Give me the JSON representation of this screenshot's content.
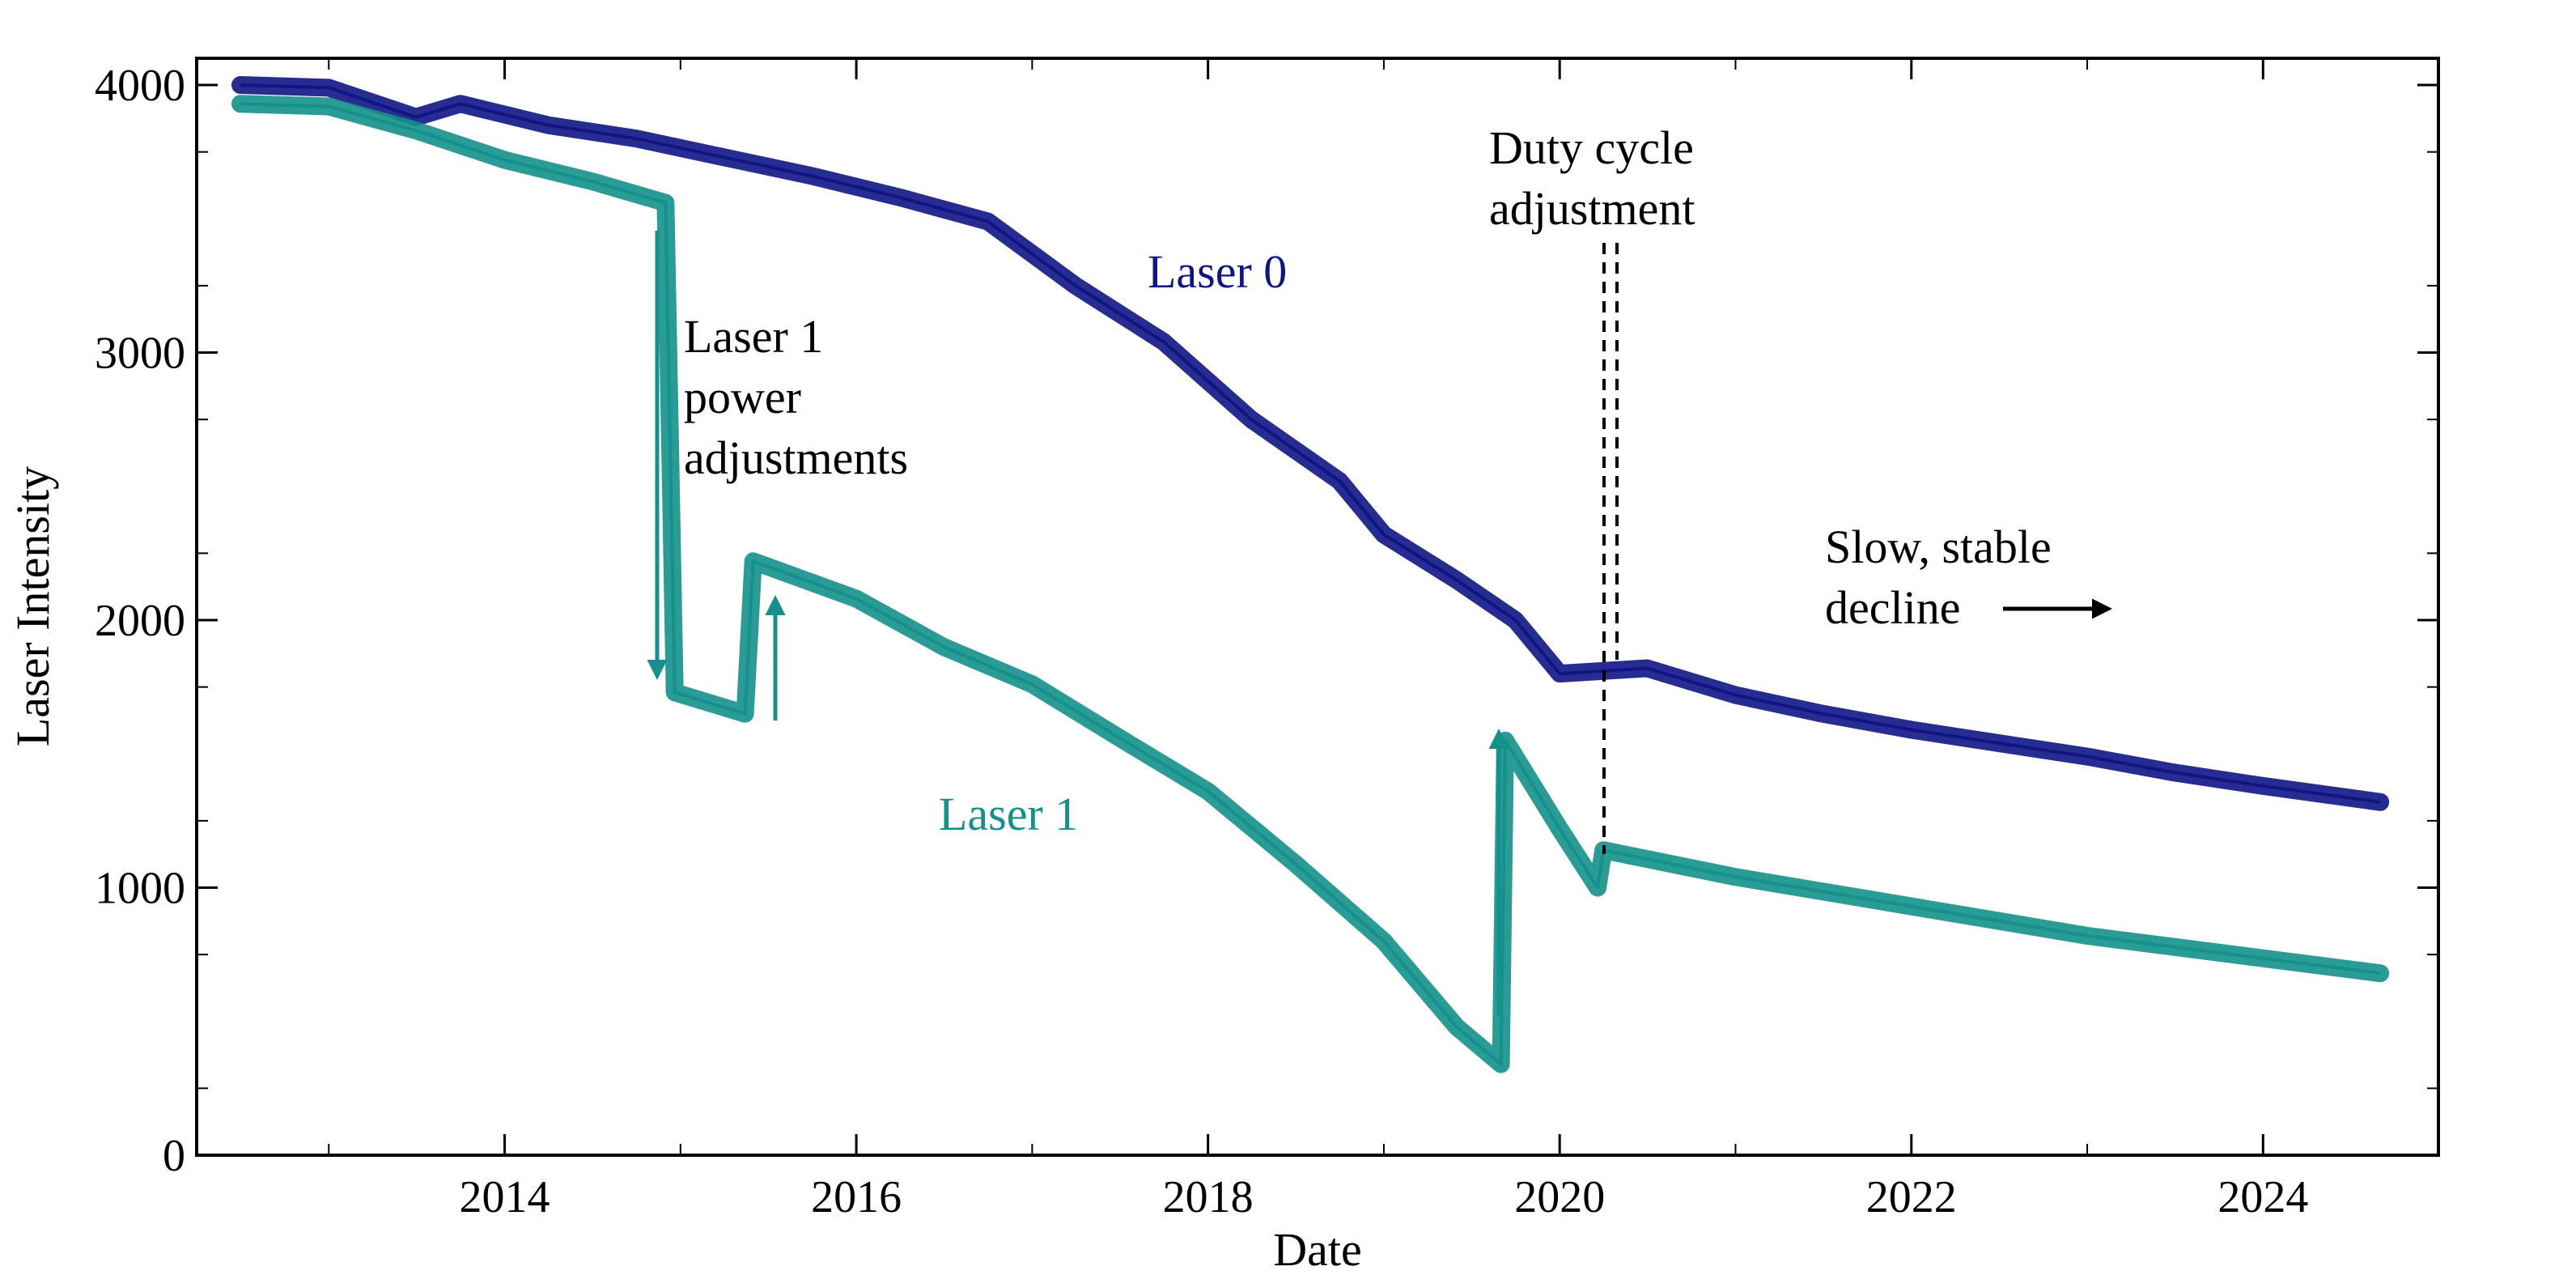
{
  "chart_data": {
    "type": "line",
    "title": "",
    "xlabel": "Date",
    "ylabel": "Laser Intensity",
    "xlim": [
      "2012-04-01",
      "2024-12-31"
    ],
    "ylim": [
      0,
      4100
    ],
    "x_ticks": [
      "2014",
      "2016",
      "2018",
      "2020",
      "2022",
      "2024"
    ],
    "y_ticks": [
      "0",
      "1000",
      "2000",
      "3000",
      "4000"
    ],
    "grid": false,
    "colors": {
      "laser0": "#101585",
      "laser1": "#13918a",
      "annotation": "#000000"
    },
    "series": [
      {
        "name": "Laser 0",
        "color": "#101585",
        "points": [
          [
            "2012-07-01",
            4000
          ],
          [
            "2013-01-01",
            3990
          ],
          [
            "2013-07-01",
            3880
          ],
          [
            "2013-10-01",
            3930
          ],
          [
            "2014-04-01",
            3850
          ],
          [
            "2014-10-01",
            3800
          ],
          [
            "2015-04-01",
            3730
          ],
          [
            "2015-10-01",
            3660
          ],
          [
            "2016-04-01",
            3580
          ],
          [
            "2016-10-01",
            3490
          ],
          [
            "2017-04-01",
            3250
          ],
          [
            "2017-10-01",
            3040
          ],
          [
            "2018-04-01",
            2750
          ],
          [
            "2018-10-01",
            2520
          ],
          [
            "2019-01-01",
            2320
          ],
          [
            "2019-06-01",
            2150
          ],
          [
            "2019-10-01",
            2000
          ],
          [
            "2020-01-01",
            1800
          ],
          [
            "2020-07-01",
            1820
          ],
          [
            "2021-01-01",
            1720
          ],
          [
            "2021-07-01",
            1650
          ],
          [
            "2022-01-01",
            1590
          ],
          [
            "2022-07-01",
            1540
          ],
          [
            "2023-01-01",
            1490
          ],
          [
            "2023-07-01",
            1430
          ],
          [
            "2024-01-01",
            1380
          ],
          [
            "2024-09-01",
            1320
          ]
        ]
      },
      {
        "name": "Laser 1",
        "color": "#13918a",
        "points": [
          [
            "2012-07-01",
            3930
          ],
          [
            "2013-01-01",
            3920
          ],
          [
            "2013-07-01",
            3830
          ],
          [
            "2014-01-01",
            3720
          ],
          [
            "2014-07-01",
            3640
          ],
          [
            "2014-12-01",
            3560
          ],
          [
            "2014-12-20",
            1730
          ],
          [
            "2015-05-15",
            1650
          ],
          [
            "2015-06-01",
            2220
          ],
          [
            "2016-01-01",
            2080
          ],
          [
            "2016-07-01",
            1900
          ],
          [
            "2017-01-01",
            1760
          ],
          [
            "2017-07-01",
            1560
          ],
          [
            "2018-01-01",
            1360
          ],
          [
            "2018-07-01",
            1090
          ],
          [
            "2019-01-01",
            800
          ],
          [
            "2019-06-01",
            480
          ],
          [
            "2019-09-01",
            340
          ],
          [
            "2019-09-10",
            1550
          ],
          [
            "2020-01-01",
            1220
          ],
          [
            "2020-03-20",
            1000
          ],
          [
            "2020-04-01",
            1140
          ],
          [
            "2021-01-01",
            1040
          ],
          [
            "2022-01-01",
            930
          ],
          [
            "2023-01-01",
            820
          ],
          [
            "2024-09-01",
            680
          ]
        ]
      }
    ],
    "annotations": {
      "laser1_power": [
        "Laser 1",
        "power",
        "adjustments"
      ],
      "duty_cycle": [
        "Duty cycle",
        "adjustment"
      ],
      "slow_decline": [
        "Slow, stable",
        "decline"
      ]
    }
  }
}
